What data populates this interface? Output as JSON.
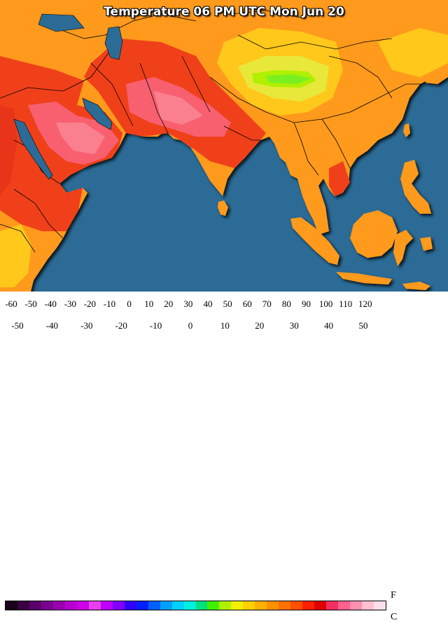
{
  "title": "Temperature 06 PM UTC Mon Jun 20",
  "legend": {
    "f_label": "F",
    "c_label": "C",
    "f_ticks": [
      "-60",
      "-50",
      "-40",
      "-30",
      "-20",
      "-10",
      "0",
      "10",
      "20",
      "30",
      "40",
      "50",
      "60",
      "70",
      "80",
      "90",
      "100",
      "110",
      "120"
    ],
    "c_ticks": [
      "-50",
      "-40",
      "-30",
      "-20",
      "-10",
      "0",
      "10",
      "20",
      "30",
      "40",
      "50"
    ],
    "colors": [
      "#1a001a",
      "#3a0040",
      "#5a006a",
      "#7a0090",
      "#9a00b0",
      "#b600d0",
      "#d000e8",
      "#e640f0",
      "#c000ff",
      "#8000ff",
      "#3000ff",
      "#0020ff",
      "#0060ff",
      "#00a0ff",
      "#00d0ff",
      "#00f0e0",
      "#00e080",
      "#40f000",
      "#b0f000",
      "#f0f000",
      "#ffd000",
      "#ffb000",
      "#ff9000",
      "#ff7000",
      "#ff5000",
      "#ff2000",
      "#e00000",
      "#f03060",
      "#ff6090",
      "#ff90b0",
      "#ffc0d0",
      "#ffe0ea"
    ]
  },
  "colors": {
    "ocean": "#2b6b96",
    "border": "#000000"
  }
}
